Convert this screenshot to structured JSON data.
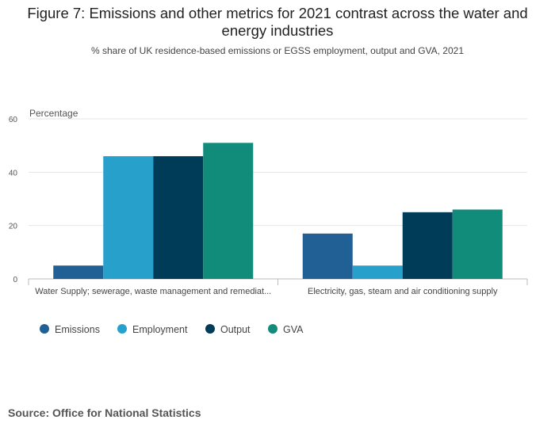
{
  "header": {
    "title": "Figure 7: Emissions and other metrics for 2021 contrast across the water and energy industries",
    "subtitle": "% share of UK residence-based emissions or EGSS employment, output and GVA, 2021"
  },
  "source": "Source: Office for National Statistics",
  "colors": {
    "Emissions": "#206095",
    "Employment": "#27a0cc",
    "Output": "#003c57",
    "GVA": "#118c7b"
  },
  "chart_data": {
    "type": "bar",
    "title": "Figure 7: Emissions and other metrics for 2021 contrast across the water and energy industries",
    "subtitle": "% share of UK residence-based emissions or EGSS employment, output and GVA, 2021",
    "ylabel": "Percentage",
    "xlabel": "",
    "ylim": [
      0,
      60
    ],
    "yticks": [
      0,
      20,
      40,
      60
    ],
    "grid": true,
    "legend": "bottom-left",
    "categories": [
      "Water Supply; sewerage, waste management and remediat...",
      "Electricity, gas, steam and air conditioning supply"
    ],
    "series": [
      {
        "name": "Emissions",
        "values": [
          5,
          17
        ]
      },
      {
        "name": "Employment",
        "values": [
          46,
          5
        ]
      },
      {
        "name": "Output",
        "values": [
          46,
          25
        ]
      },
      {
        "name": "GVA",
        "values": [
          51,
          26
        ]
      }
    ]
  }
}
